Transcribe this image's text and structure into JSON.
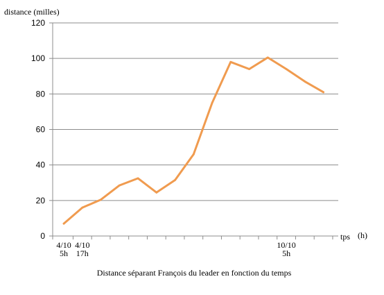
{
  "chart_data": {
    "type": "line",
    "title": "",
    "ylabel": "distance (milles)",
    "xlabel_main": "tps",
    "xlabel_unit": "(h)",
    "caption": "Distance séparant François du leader en fonction du temps",
    "ylim": [
      0,
      120
    ],
    "yticks": [
      "0",
      "20",
      "40",
      "60",
      "80",
      "100",
      "120"
    ],
    "grid": true,
    "x_tick_labels": [
      {
        "line1": "4/10",
        "line2": "5h",
        "x": 0
      },
      {
        "line1": "4/10",
        "line2": "17h",
        "x": 1
      },
      {
        "line1": "10/10",
        "line2": "5h",
        "x": 12
      }
    ],
    "xlim": [
      -0.6,
      14.8
    ],
    "series": [
      {
        "color": "#F09B4F",
        "x": [
          0,
          1,
          2,
          3,
          4,
          5,
          6,
          7,
          8,
          9,
          10,
          11,
          12,
          13,
          14
        ],
        "values": [
          7,
          16,
          20.5,
          28.5,
          32.5,
          24.5,
          31.5,
          46,
          75,
          98,
          94,
          100.5,
          94,
          87,
          81
        ]
      }
    ]
  }
}
